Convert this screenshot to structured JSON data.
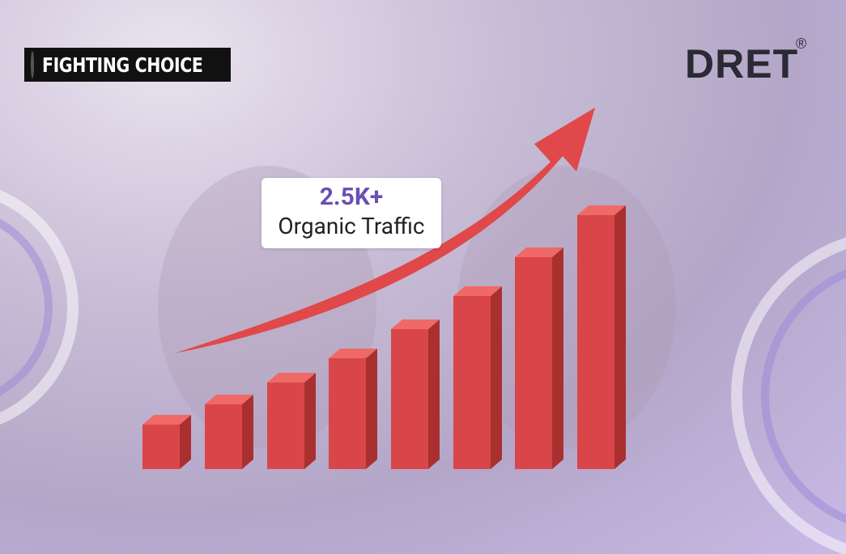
{
  "logos": {
    "client": "FIGHTING CHOICE",
    "agency": "DRET",
    "agency_mark": "®"
  },
  "callout": {
    "value": "2.5K+",
    "label": "Organic Traffic"
  }
}
